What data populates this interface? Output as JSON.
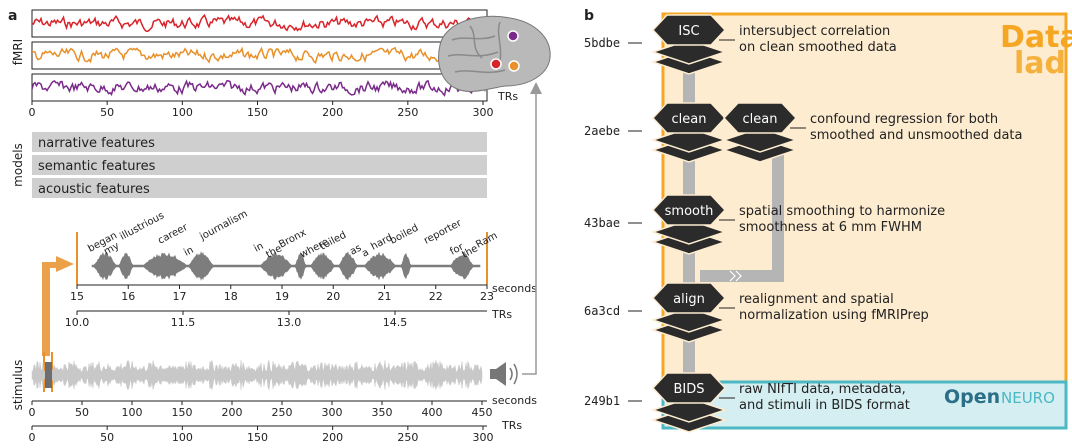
{
  "panel_a": {
    "label": "a",
    "fmri": {
      "ylabel": "fMRI",
      "xlabel": "TRs",
      "ticks": [
        "0",
        "50",
        "100",
        "150",
        "200",
        "250",
        "300"
      ],
      "colors": [
        "#d8232a",
        "#e8902a",
        "#7a2a8a"
      ]
    },
    "models": {
      "ylabel": "models",
      "items": [
        "narrative features",
        "semantic features",
        "acoustic features"
      ]
    },
    "zoom": {
      "words": [
        "began",
        "my",
        "illustrious",
        "career",
        "in",
        "journalism",
        "in",
        "the",
        "Bronx",
        "where",
        "toiled",
        "as",
        "a",
        "hard",
        "boiled",
        "reporter",
        "for",
        "the",
        "Ram"
      ],
      "seconds_ticks": [
        "15",
        "16",
        "17",
        "18",
        "19",
        "20",
        "21",
        "22",
        "23"
      ],
      "seconds_label": "seconds",
      "tr_ticks": [
        "10.0",
        "11.5",
        "13.0",
        "14.5"
      ],
      "tr_label": "TRs"
    },
    "stimulus": {
      "ylabel": "stimulus",
      "seconds_ticks": [
        "0",
        "50",
        "100",
        "150",
        "200",
        "250",
        "300",
        "350",
        "400",
        "450"
      ],
      "seconds_label": "seconds",
      "tr_ticks": [
        "0",
        "50",
        "100",
        "150",
        "200",
        "250",
        "300"
      ],
      "tr_label": "TRs"
    },
    "speaker_icon": "speaker-icon",
    "brain_icon": "brain-icon"
  },
  "panel_b": {
    "label": "b",
    "datalad_logo": [
      "Data",
      "lad"
    ],
    "openneuro_logo": [
      "Open",
      "NEURO"
    ],
    "stages": [
      {
        "hash": "5bdbe",
        "nodes": [
          "ISC"
        ],
        "desc": [
          "intersubject correlation",
          "on clean smoothed data"
        ]
      },
      {
        "hash": "2aebe",
        "nodes": [
          "clean",
          "clean"
        ],
        "desc": [
          "confound regression for both",
          "smoothed and unsmoothed data"
        ]
      },
      {
        "hash": "43bae",
        "nodes": [
          "smooth"
        ],
        "desc": [
          "spatial smoothing to harmonize",
          "smoothness at 6 mm FWHM"
        ]
      },
      {
        "hash": "6a3cd",
        "nodes": [
          "align"
        ],
        "desc": [
          "realignment and spatial",
          "normalization using fMRIPrep"
        ]
      },
      {
        "hash": "249b1",
        "nodes": [
          "BIDS"
        ],
        "desc": [
          "raw NIfTI data, metadata,",
          "and stimuli in BIDS format"
        ]
      }
    ],
    "colors": {
      "datalad": "#f5a623",
      "datalad_bg": "#fdecd0",
      "openneuro": "#4bb8c4",
      "openneuro_bg": "#d4eef1",
      "node": "#2b2b2b"
    }
  }
}
